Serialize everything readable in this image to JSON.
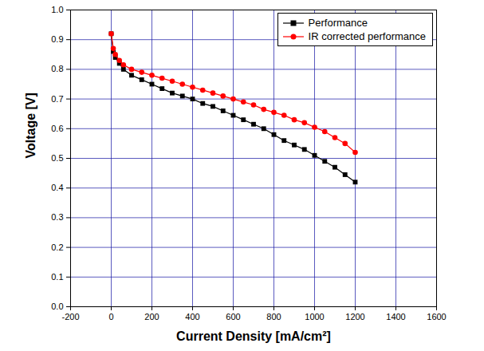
{
  "chart_data": {
    "type": "line",
    "x_label": "Current Density [mA/cm²]",
    "y_label": "Voltage [V]",
    "x": [
      0,
      10,
      20,
      40,
      60,
      100,
      150,
      200,
      250,
      300,
      350,
      400,
      450,
      500,
      550,
      600,
      650,
      700,
      750,
      800,
      850,
      900,
      950,
      1000,
      1050,
      1100,
      1150,
      1200
    ],
    "series": [
      {
        "name": "Performance",
        "color": "#000000",
        "marker": "square",
        "line_style": "solid",
        "values": [
          0.92,
          0.86,
          0.84,
          0.82,
          0.8,
          0.78,
          0.765,
          0.75,
          0.735,
          0.72,
          0.71,
          0.7,
          0.685,
          0.675,
          0.66,
          0.645,
          0.63,
          0.615,
          0.6,
          0.58,
          0.56,
          0.545,
          0.53,
          0.51,
          0.49,
          0.47,
          0.445,
          0.42
        ]
      },
      {
        "name": "IR corrected performance",
        "color": "#ff0000",
        "marker": "circle",
        "line_style": "solid",
        "values": [
          0.92,
          0.87,
          0.85,
          0.83,
          0.815,
          0.8,
          0.79,
          0.78,
          0.77,
          0.76,
          0.75,
          0.74,
          0.73,
          0.72,
          0.71,
          0.7,
          0.69,
          0.68,
          0.665,
          0.655,
          0.645,
          0.63,
          0.62,
          0.605,
          0.59,
          0.57,
          0.55,
          0.52
        ]
      }
    ],
    "xlim": [
      -200,
      1600
    ],
    "xticks": [
      -200,
      0,
      200,
      400,
      600,
      800,
      1000,
      1200,
      1400,
      1600
    ],
    "ylim": [
      0,
      1
    ],
    "yticks": [
      {
        "value": 0,
        "label": "0.0"
      },
      0.1,
      0.2,
      0.3,
      0.4,
      0.5,
      0.6,
      0.7,
      0.8,
      0.9,
      {
        "value": 1,
        "label": "1.0"
      }
    ],
    "grid": true,
    "legend": "upper right"
  }
}
